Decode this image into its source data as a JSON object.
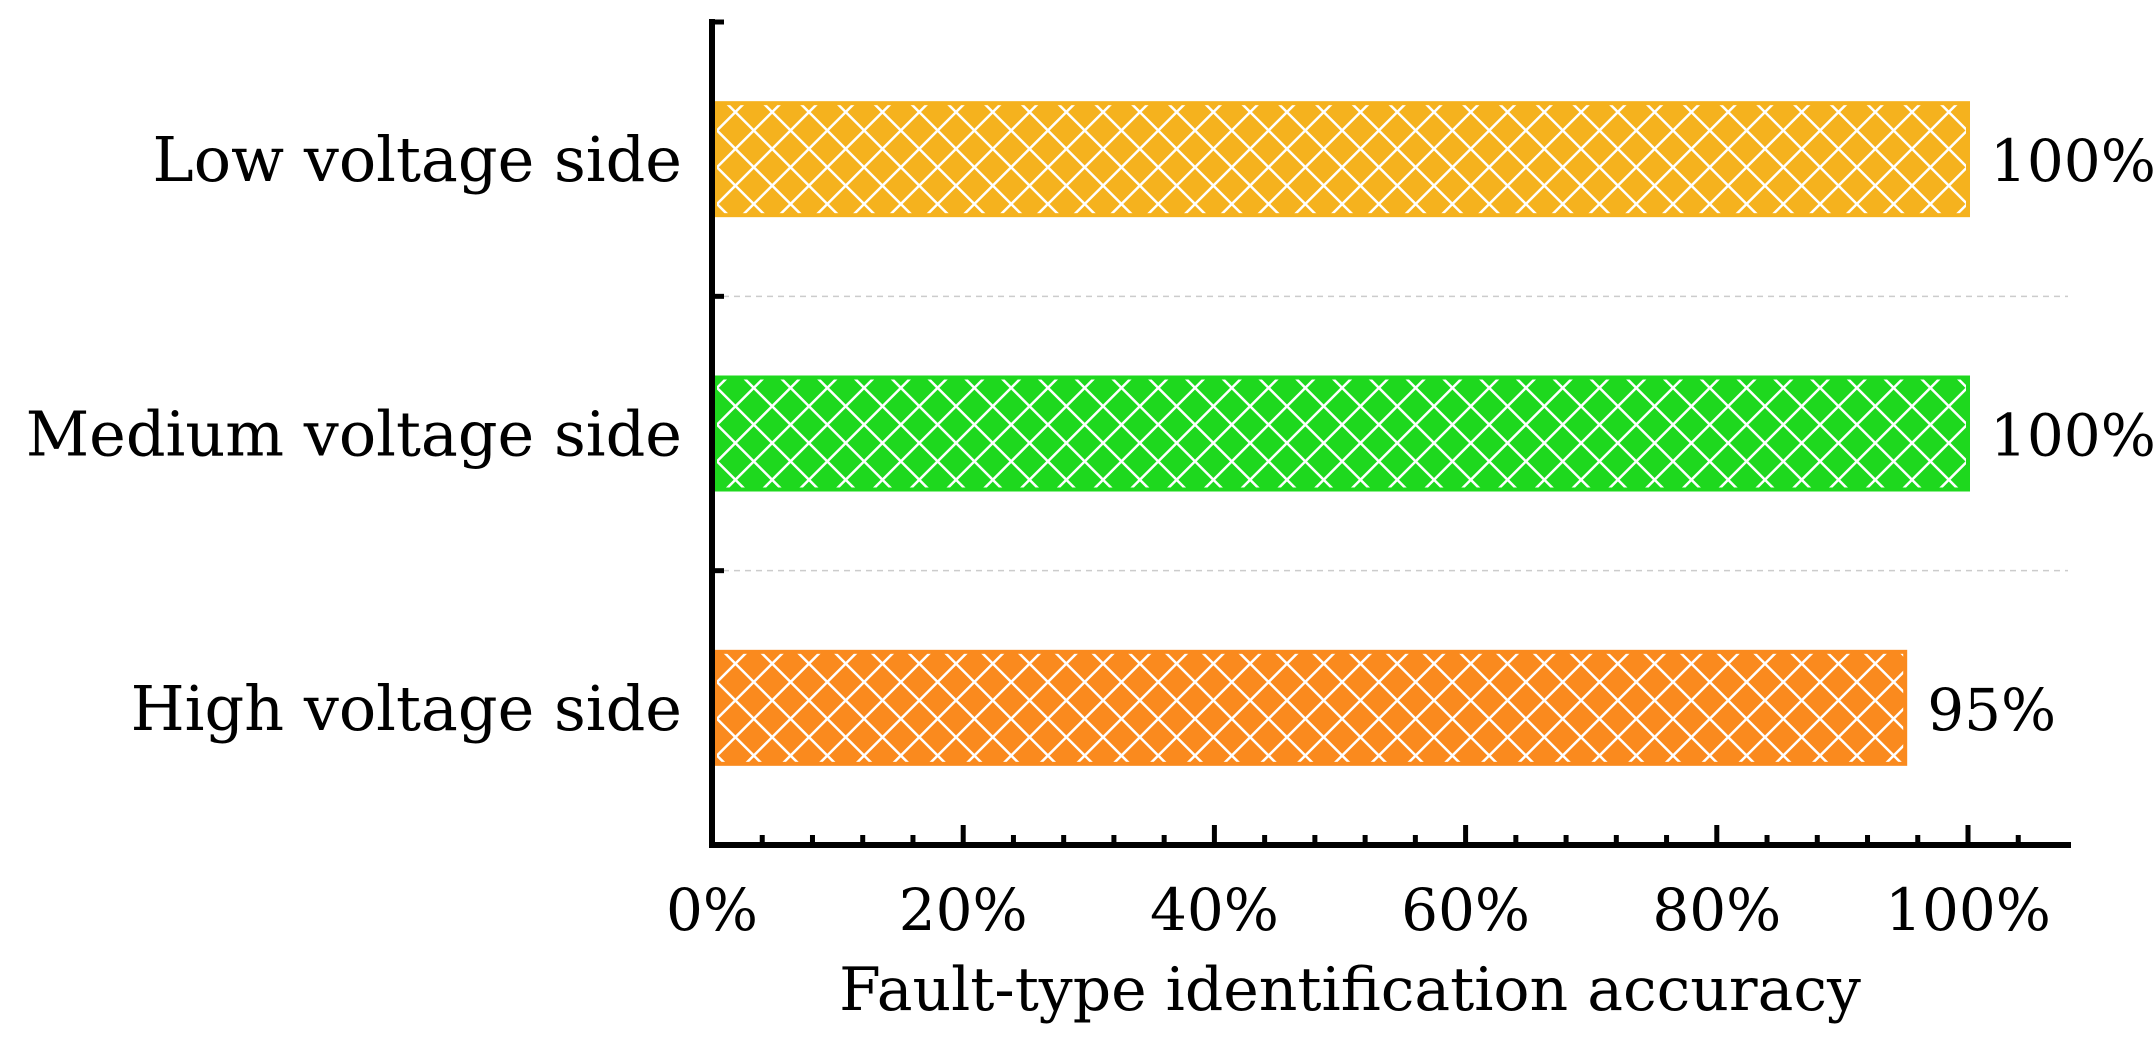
{
  "chart_data": {
    "type": "bar",
    "orientation": "horizontal",
    "title": "",
    "xlabel": "Fault-type identification accuracy",
    "ylabel": "",
    "xlim": [
      0,
      108
    ],
    "x_ticks": [
      0,
      20,
      40,
      60,
      80,
      100
    ],
    "x_tick_labels": [
      "0%",
      "20%",
      "40%",
      "60%",
      "80%",
      "100%"
    ],
    "minor_tick_step": 4,
    "grid": "horizontal dashed separators",
    "legend": "none",
    "categories": [
      "Low voltage side",
      "Medium voltage side",
      "High voltage side"
    ],
    "values": [
      100,
      100,
      95
    ],
    "value_labels": [
      "100%",
      "100%",
      "95%"
    ],
    "colors": [
      "#F5B21E",
      "#1ED81E",
      "#FA8A1E"
    ],
    "pattern": "white diamond crosshatch"
  }
}
